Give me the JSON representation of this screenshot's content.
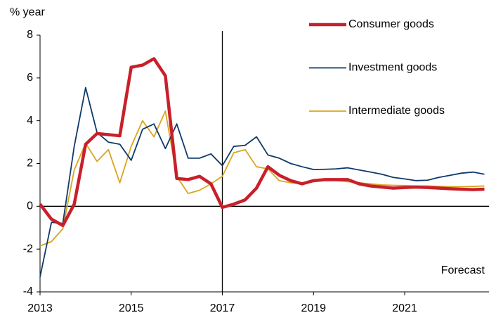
{
  "chart_data": {
    "type": "line",
    "y_label": "% year",
    "annotation": "Forecast",
    "vline": 2017,
    "legend": "upper right",
    "xlim": [
      2013,
      2022.85
    ],
    "xticks": [
      2013,
      2015,
      2017,
      2019,
      2021
    ],
    "ylim": [
      -4,
      8
    ],
    "yticks": [
      -4,
      -2,
      0,
      2,
      4,
      6,
      8
    ],
    "x": [
      2013,
      2013.25,
      2013.5,
      2013.75,
      2014,
      2014.25,
      2014.5,
      2014.75,
      2015,
      2015.25,
      2015.5,
      2015.75,
      2016,
      2016.25,
      2016.5,
      2016.75,
      2017,
      2017.25,
      2017.5,
      2017.75,
      2018,
      2018.25,
      2018.5,
      2018.75,
      2019,
      2019.25,
      2019.5,
      2019.75,
      2020,
      2020.25,
      2020.5,
      2020.75,
      2021,
      2021.25,
      2021.5,
      2021.75,
      2022,
      2022.25,
      2022.5,
      2022.75
    ],
    "series": [
      {
        "name": "Consumer goods",
        "color": "#c8202a",
        "width": 4.5,
        "values": [
          0.1,
          -0.6,
          -0.9,
          0.1,
          2.9,
          3.4,
          3.35,
          3.3,
          6.5,
          6.6,
          6.9,
          6.1,
          1.3,
          1.25,
          1.4,
          1.05,
          -0.05,
          0.1,
          0.3,
          0.85,
          1.85,
          1.45,
          1.2,
          1.05,
          1.2,
          1.25,
          1.25,
          1.25,
          1.05,
          0.95,
          0.9,
          0.85,
          0.88,
          0.9,
          0.88,
          0.85,
          0.82,
          0.8,
          0.78,
          0.8
        ]
      },
      {
        "name": "Investment goods",
        "color": "#0e3a6b",
        "width": 1.8,
        "values": [
          -3.3,
          -0.75,
          -0.8,
          2.8,
          5.55,
          3.45,
          3.0,
          2.9,
          2.15,
          3.6,
          3.85,
          2.7,
          3.85,
          2.25,
          2.25,
          2.45,
          1.9,
          2.8,
          2.85,
          3.25,
          2.4,
          2.25,
          2.0,
          1.85,
          1.72,
          1.73,
          1.75,
          1.8,
          1.7,
          1.6,
          1.5,
          1.35,
          1.28,
          1.2,
          1.22,
          1.35,
          1.45,
          1.55,
          1.6,
          1.5
        ]
      },
      {
        "name": "Intermediate goods",
        "color": "#d9a520",
        "width": 1.8,
        "values": [
          -1.85,
          -1.65,
          -1.05,
          1.7,
          2.95,
          2.1,
          2.65,
          1.1,
          2.8,
          4.0,
          3.25,
          4.45,
          1.4,
          0.6,
          0.75,
          1.05,
          1.4,
          2.5,
          2.65,
          1.85,
          1.75,
          1.2,
          1.1,
          1.05,
          1.15,
          1.2,
          1.2,
          1.15,
          1.1,
          1.05,
          1.0,
          0.98,
          0.97,
          0.95,
          0.95,
          0.93,
          0.92,
          0.92,
          0.93,
          0.95
        ]
      }
    ]
  }
}
